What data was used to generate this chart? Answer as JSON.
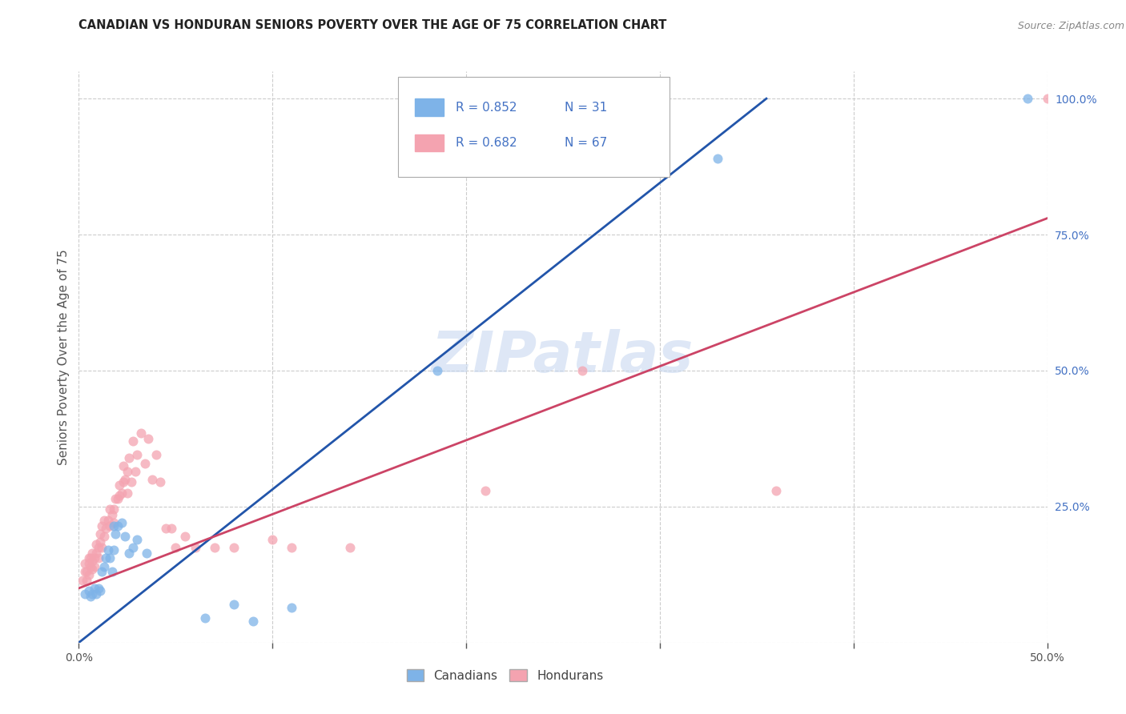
{
  "title": "CANADIAN VS HONDURAN SENIORS POVERTY OVER THE AGE OF 75 CORRELATION CHART",
  "source": "Source: ZipAtlas.com",
  "ylabel": "Seniors Poverty Over the Age of 75",
  "xlabel": "",
  "xlim": [
    0,
    0.5
  ],
  "ylim": [
    -0.02,
    1.08
  ],
  "plot_ylim": [
    0,
    1.05
  ],
  "xticks": [
    0.0,
    0.1,
    0.2,
    0.3,
    0.4,
    0.5
  ],
  "xticklabels": [
    "0.0%",
    "",
    "",
    "",
    "",
    "50.0%"
  ],
  "yticks_right": [
    0.0,
    0.25,
    0.5,
    0.75,
    1.0
  ],
  "ytick_right_labels": [
    "",
    "25.0%",
    "50.0%",
    "75.0%",
    "100.0%"
  ],
  "background_color": "#ffffff",
  "grid_color": "#cccccc",
  "watermark_text": "ZIPatlas",
  "canadian_color": "#7eb3e8",
  "honduran_color": "#f4a3b0",
  "canadian_line_color": "#2255aa",
  "honduran_line_color": "#cc4466",
  "legend_R_canadian": "R = 0.852",
  "legend_N_canadian": "N = 31",
  "legend_R_honduran": "R = 0.682",
  "legend_N_honduran": "N = 67",
  "canadian_reg_line": [
    [
      0.0,
      0.0
    ],
    [
      0.355,
      1.0
    ]
  ],
  "honduran_reg_line": [
    [
      0.0,
      0.1
    ],
    [
      0.5,
      0.78
    ]
  ],
  "canadian_scatter": [
    [
      0.003,
      0.09
    ],
    [
      0.005,
      0.095
    ],
    [
      0.006,
      0.085
    ],
    [
      0.007,
      0.09
    ],
    [
      0.008,
      0.1
    ],
    [
      0.009,
      0.09
    ],
    [
      0.01,
      0.1
    ],
    [
      0.011,
      0.095
    ],
    [
      0.012,
      0.13
    ],
    [
      0.013,
      0.14
    ],
    [
      0.014,
      0.155
    ],
    [
      0.015,
      0.17
    ],
    [
      0.016,
      0.155
    ],
    [
      0.017,
      0.13
    ],
    [
      0.018,
      0.17
    ],
    [
      0.018,
      0.215
    ],
    [
      0.019,
      0.2
    ],
    [
      0.02,
      0.215
    ],
    [
      0.022,
      0.22
    ],
    [
      0.024,
      0.195
    ],
    [
      0.026,
      0.165
    ],
    [
      0.028,
      0.175
    ],
    [
      0.03,
      0.19
    ],
    [
      0.035,
      0.165
    ],
    [
      0.065,
      0.045
    ],
    [
      0.08,
      0.07
    ],
    [
      0.09,
      0.04
    ],
    [
      0.11,
      0.065
    ],
    [
      0.185,
      0.5
    ],
    [
      0.33,
      0.89
    ],
    [
      0.49,
      1.0
    ]
  ],
  "honduran_scatter": [
    [
      0.002,
      0.115
    ],
    [
      0.003,
      0.13
    ],
    [
      0.003,
      0.145
    ],
    [
      0.004,
      0.115
    ],
    [
      0.004,
      0.13
    ],
    [
      0.005,
      0.125
    ],
    [
      0.005,
      0.145
    ],
    [
      0.005,
      0.155
    ],
    [
      0.006,
      0.14
    ],
    [
      0.006,
      0.155
    ],
    [
      0.007,
      0.135
    ],
    [
      0.007,
      0.15
    ],
    [
      0.007,
      0.165
    ],
    [
      0.008,
      0.14
    ],
    [
      0.008,
      0.155
    ],
    [
      0.009,
      0.165
    ],
    [
      0.009,
      0.18
    ],
    [
      0.01,
      0.155
    ],
    [
      0.01,
      0.175
    ],
    [
      0.011,
      0.185
    ],
    [
      0.011,
      0.2
    ],
    [
      0.012,
      0.175
    ],
    [
      0.012,
      0.215
    ],
    [
      0.013,
      0.195
    ],
    [
      0.013,
      0.225
    ],
    [
      0.014,
      0.21
    ],
    [
      0.015,
      0.225
    ],
    [
      0.016,
      0.215
    ],
    [
      0.016,
      0.245
    ],
    [
      0.017,
      0.235
    ],
    [
      0.018,
      0.22
    ],
    [
      0.018,
      0.245
    ],
    [
      0.019,
      0.265
    ],
    [
      0.02,
      0.265
    ],
    [
      0.021,
      0.27
    ],
    [
      0.021,
      0.29
    ],
    [
      0.022,
      0.275
    ],
    [
      0.023,
      0.295
    ],
    [
      0.023,
      0.325
    ],
    [
      0.024,
      0.3
    ],
    [
      0.025,
      0.275
    ],
    [
      0.025,
      0.315
    ],
    [
      0.026,
      0.34
    ],
    [
      0.027,
      0.295
    ],
    [
      0.028,
      0.37
    ],
    [
      0.029,
      0.315
    ],
    [
      0.03,
      0.345
    ],
    [
      0.032,
      0.385
    ],
    [
      0.034,
      0.33
    ],
    [
      0.036,
      0.375
    ],
    [
      0.038,
      0.3
    ],
    [
      0.04,
      0.345
    ],
    [
      0.042,
      0.295
    ],
    [
      0.045,
      0.21
    ],
    [
      0.048,
      0.21
    ],
    [
      0.05,
      0.175
    ],
    [
      0.055,
      0.195
    ],
    [
      0.06,
      0.175
    ],
    [
      0.07,
      0.175
    ],
    [
      0.08,
      0.175
    ],
    [
      0.1,
      0.19
    ],
    [
      0.11,
      0.175
    ],
    [
      0.14,
      0.175
    ],
    [
      0.21,
      0.28
    ],
    [
      0.26,
      0.5
    ],
    [
      0.36,
      0.28
    ],
    [
      0.5,
      1.0
    ]
  ]
}
